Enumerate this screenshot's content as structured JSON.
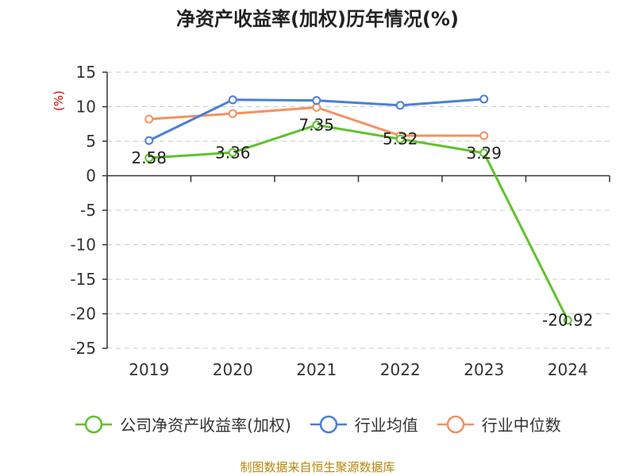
{
  "chart_data": {
    "type": "line",
    "title": "净资产收益率(加权)历年情况(%)",
    "ylabel": "(%)",
    "xlabel": "",
    "categories": [
      "2019",
      "2020",
      "2021",
      "2022",
      "2023",
      "2024"
    ],
    "ylim": [
      -25,
      15
    ],
    "yticks": [
      15,
      10,
      5,
      0,
      -5,
      -10,
      -15,
      -20,
      -25
    ],
    "grid": true,
    "legend_position": "bottom",
    "series": [
      {
        "name": "公司净资产收益率(加权)",
        "color": "#5ec22b",
        "values": [
          2.58,
          3.36,
          7.35,
          5.32,
          3.29,
          -20.92
        ],
        "labels": [
          "2.58",
          "3.36",
          "7.35",
          "5.32",
          "3.29",
          "-20.92"
        ]
      },
      {
        "name": "行业均值",
        "color": "#4a7fd8",
        "values": [
          5.1,
          11.0,
          10.9,
          10.2,
          11.1,
          null
        ]
      },
      {
        "name": "行业中位数",
        "color": "#f59060",
        "values": [
          8.2,
          9.0,
          9.9,
          5.8,
          5.8,
          null
        ]
      }
    ]
  },
  "source": "制图数据来自恒生聚源数据库"
}
